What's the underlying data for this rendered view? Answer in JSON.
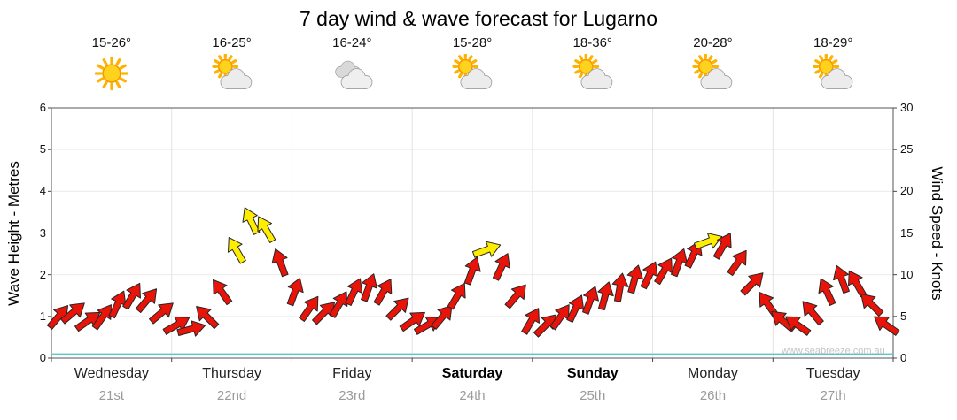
{
  "title": "7 day wind & wave forecast for Lugarno",
  "watermark": "www.seabreeze.com.au",
  "days": [
    {
      "temp": "15-26°",
      "icon": "sunny",
      "name": "Wednesday",
      "date": "21st",
      "weekend": false
    },
    {
      "temp": "16-25°",
      "icon": "partly-cloudy",
      "name": "Thursday",
      "date": "22nd",
      "weekend": false
    },
    {
      "temp": "16-24°",
      "icon": "cloudy",
      "name": "Friday",
      "date": "23rd",
      "weekend": false
    },
    {
      "temp": "15-28°",
      "icon": "partly-cloudy",
      "name": "Saturday",
      "date": "24th",
      "weekend": true
    },
    {
      "temp": "18-36°",
      "icon": "partly-cloudy",
      "name": "Sunday",
      "date": "25th",
      "weekend": true
    },
    {
      "temp": "20-28°",
      "icon": "partly-cloudy",
      "name": "Monday",
      "date": "26th",
      "weekend": false
    },
    {
      "temp": "18-29°",
      "icon": "partly-cloudy",
      "name": "Tuesday",
      "date": "27th",
      "weekend": false
    }
  ],
  "axes": {
    "left_label": "Wave Height - Metres",
    "right_label": "Wind Speed - Knots",
    "left_ticks": [
      0,
      1,
      2,
      3,
      4,
      5,
      6
    ],
    "right_ticks": [
      0,
      5,
      10,
      15,
      20,
      25,
      30
    ]
  },
  "chart_data": {
    "type": "wind-arrow-line",
    "title": "7 day wind & wave forecast for Lugarno",
    "ylabel_left": "Wave Height - Metres",
    "ylabel_right": "Wind Speed - Knots",
    "ylim_left": [
      0,
      6
    ],
    "ylim_right": [
      0,
      30
    ],
    "days": [
      "Wednesday 21st",
      "Thursday 22nd",
      "Friday 23rd",
      "Saturday 24th",
      "Sunday 25th",
      "Monday 26th",
      "Tuesday 27th"
    ],
    "wind_speed_knots": [
      5,
      5.5,
      4.5,
      5,
      6.5,
      7.5,
      7,
      5.5,
      4,
      3.5,
      5,
      8,
      13,
      16.5,
      15.5,
      11.5,
      8,
      6,
      5.5,
      6.5,
      8,
      8.5,
      8,
      6,
      4.5,
      4,
      5,
      7.5,
      10.5,
      13,
      11,
      7.5,
      4.5,
      4,
      5,
      6,
      7,
      7.5,
      8.5,
      9.5,
      10,
      10.5,
      11.5,
      12.5,
      14,
      13.5,
      11.5,
      9,
      6.5,
      4.5,
      4,
      5.5,
      8,
      9.5,
      9,
      6.5,
      4
    ],
    "wind_dir_deg": [
      40,
      50,
      55,
      35,
      25,
      30,
      40,
      50,
      60,
      75,
      -45,
      -35,
      -30,
      -25,
      -30,
      -20,
      20,
      35,
      45,
      30,
      25,
      20,
      30,
      45,
      55,
      60,
      40,
      30,
      20,
      70,
      25,
      40,
      30,
      45,
      35,
      25,
      20,
      15,
      10,
      15,
      25,
      30,
      20,
      25,
      70,
      30,
      35,
      45,
      -35,
      -50,
      -55,
      -40,
      -25,
      -20,
      -30,
      -45,
      -55
    ],
    "strong_wind_flags": [
      0,
      0,
      0,
      0,
      0,
      0,
      0,
      0,
      0,
      0,
      0,
      0,
      1,
      1,
      1,
      0,
      0,
      0,
      0,
      0,
      0,
      0,
      0,
      0,
      0,
      0,
      0,
      0,
      0,
      1,
      0,
      0,
      0,
      0,
      0,
      0,
      0,
      0,
      0,
      0,
      0,
      0,
      0,
      0,
      1,
      0,
      0,
      0,
      0,
      0,
      0,
      0,
      0,
      0,
      0,
      0,
      0
    ],
    "wave_height_m": 0.1,
    "legend": "none",
    "grid": "light vertical day separators and faint horizontal metre lines",
    "colors": {
      "arrow": "#e81309",
      "strong_arrow": "#ffed00",
      "arrow_outline": "#262626",
      "wave_line": "#5bc8c8",
      "axis": "#555555"
    }
  }
}
